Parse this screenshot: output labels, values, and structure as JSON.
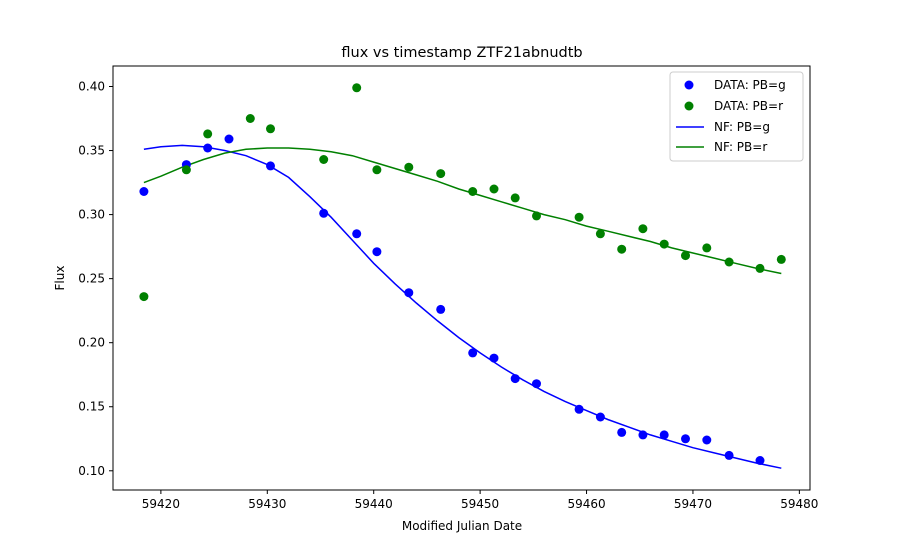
{
  "chart_data": {
    "type": "scatter",
    "title": "flux vs timestamp ZTF21abnudtb",
    "xlabel": "Modified Julian Date",
    "ylabel": "Flux",
    "xlim": [
      59415.5,
      59481.0
    ],
    "ylim": [
      0.085,
      0.416
    ],
    "xticks": [
      59420,
      59430,
      59440,
      59450,
      59460,
      59470,
      59480
    ],
    "yticks": [
      0.1,
      0.15,
      0.2,
      0.25,
      0.3,
      0.35,
      0.4
    ],
    "xtick_labels": [
      "59420",
      "59430",
      "59440",
      "59450",
      "59460",
      "59470",
      "59480"
    ],
    "ytick_labels": [
      "0.10",
      "0.15",
      "0.20",
      "0.25",
      "0.30",
      "0.35",
      "0.40"
    ],
    "grid": false,
    "legend_position": "top-right",
    "colors": {
      "g": "#0000ff",
      "r": "#008000"
    },
    "scatter_series": [
      {
        "name": "DATA: PB=g",
        "color": "#0000ff",
        "points": [
          [
            59418.4,
            0.318
          ],
          [
            59422.4,
            0.339
          ],
          [
            59424.4,
            0.352
          ],
          [
            59426.4,
            0.359
          ],
          [
            59430.3,
            0.338
          ],
          [
            59435.3,
            0.301
          ],
          [
            59438.4,
            0.285
          ],
          [
            59440.3,
            0.271
          ],
          [
            59443.3,
            0.239
          ],
          [
            59446.3,
            0.226
          ],
          [
            59449.3,
            0.192
          ],
          [
            59451.3,
            0.188
          ],
          [
            59453.3,
            0.172
          ],
          [
            59455.3,
            0.168
          ],
          [
            59459.3,
            0.148
          ],
          [
            59461.3,
            0.142
          ],
          [
            59463.3,
            0.13
          ],
          [
            59465.3,
            0.128
          ],
          [
            59467.3,
            0.128
          ],
          [
            59469.3,
            0.125
          ],
          [
            59471.3,
            0.124
          ],
          [
            59473.4,
            0.112
          ],
          [
            59476.3,
            0.108
          ]
        ]
      },
      {
        "name": "DATA: PB=r",
        "color": "#008000",
        "points": [
          [
            59418.4,
            0.236
          ],
          [
            59422.4,
            0.335
          ],
          [
            59424.4,
            0.363
          ],
          [
            59428.4,
            0.375
          ],
          [
            59430.3,
            0.367
          ],
          [
            59435.3,
            0.343
          ],
          [
            59438.4,
            0.399
          ],
          [
            59440.3,
            0.335
          ],
          [
            59443.3,
            0.337
          ],
          [
            59446.3,
            0.332
          ],
          [
            59449.3,
            0.318
          ],
          [
            59451.3,
            0.32
          ],
          [
            59453.3,
            0.313
          ],
          [
            59455.3,
            0.299
          ],
          [
            59459.3,
            0.298
          ],
          [
            59461.3,
            0.285
          ],
          [
            59463.3,
            0.273
          ],
          [
            59465.3,
            0.289
          ],
          [
            59467.3,
            0.277
          ],
          [
            59469.3,
            0.268
          ],
          [
            59471.3,
            0.274
          ],
          [
            59473.4,
            0.263
          ],
          [
            59476.3,
            0.258
          ],
          [
            59478.3,
            0.265
          ]
        ]
      }
    ],
    "line_series": [
      {
        "name": "NF: PB=g",
        "color": "#0000ff",
        "points": [
          [
            59418.4,
            0.351
          ],
          [
            59420.0,
            0.353
          ],
          [
            59422.0,
            0.354
          ],
          [
            59424.0,
            0.353
          ],
          [
            59426.0,
            0.35
          ],
          [
            59428.0,
            0.346
          ],
          [
            59430.0,
            0.339
          ],
          [
            59432.0,
            0.329
          ],
          [
            59434.0,
            0.314
          ],
          [
            59436.0,
            0.298
          ],
          [
            59438.0,
            0.28
          ],
          [
            59440.0,
            0.262
          ],
          [
            59442.0,
            0.246
          ],
          [
            59444.0,
            0.231
          ],
          [
            59446.0,
            0.217
          ],
          [
            59448.0,
            0.204
          ],
          [
            59450.0,
            0.192
          ],
          [
            59452.0,
            0.181
          ],
          [
            59454.0,
            0.171
          ],
          [
            59456.0,
            0.162
          ],
          [
            59458.0,
            0.154
          ],
          [
            59460.0,
            0.147
          ],
          [
            59462.0,
            0.14
          ],
          [
            59464.0,
            0.134
          ],
          [
            59466.0,
            0.128
          ],
          [
            59468.0,
            0.123
          ],
          [
            59470.0,
            0.118
          ],
          [
            59472.0,
            0.114
          ],
          [
            59474.0,
            0.11
          ],
          [
            59476.0,
            0.106
          ],
          [
            59478.3,
            0.102
          ]
        ]
      },
      {
        "name": "NF: PB=r",
        "color": "#008000",
        "points": [
          [
            59418.4,
            0.325
          ],
          [
            59420.0,
            0.33
          ],
          [
            59422.0,
            0.337
          ],
          [
            59424.0,
            0.343
          ],
          [
            59426.0,
            0.348
          ],
          [
            59428.0,
            0.351
          ],
          [
            59430.0,
            0.352
          ],
          [
            59432.0,
            0.352
          ],
          [
            59434.0,
            0.351
          ],
          [
            59436.0,
            0.349
          ],
          [
            59438.0,
            0.346
          ],
          [
            59440.0,
            0.341
          ],
          [
            59442.0,
            0.336
          ],
          [
            59444.0,
            0.331
          ],
          [
            59446.0,
            0.326
          ],
          [
            59448.0,
            0.32
          ],
          [
            59450.0,
            0.315
          ],
          [
            59452.0,
            0.31
          ],
          [
            59454.0,
            0.305
          ],
          [
            59456.0,
            0.3
          ],
          [
            59458.0,
            0.296
          ],
          [
            59460.0,
            0.291
          ],
          [
            59462.0,
            0.287
          ],
          [
            59464.0,
            0.283
          ],
          [
            59466.0,
            0.279
          ],
          [
            59468.0,
            0.274
          ],
          [
            59470.0,
            0.27
          ],
          [
            59472.0,
            0.266
          ],
          [
            59474.0,
            0.262
          ],
          [
            59476.0,
            0.258
          ],
          [
            59478.3,
            0.254
          ]
        ]
      }
    ]
  }
}
